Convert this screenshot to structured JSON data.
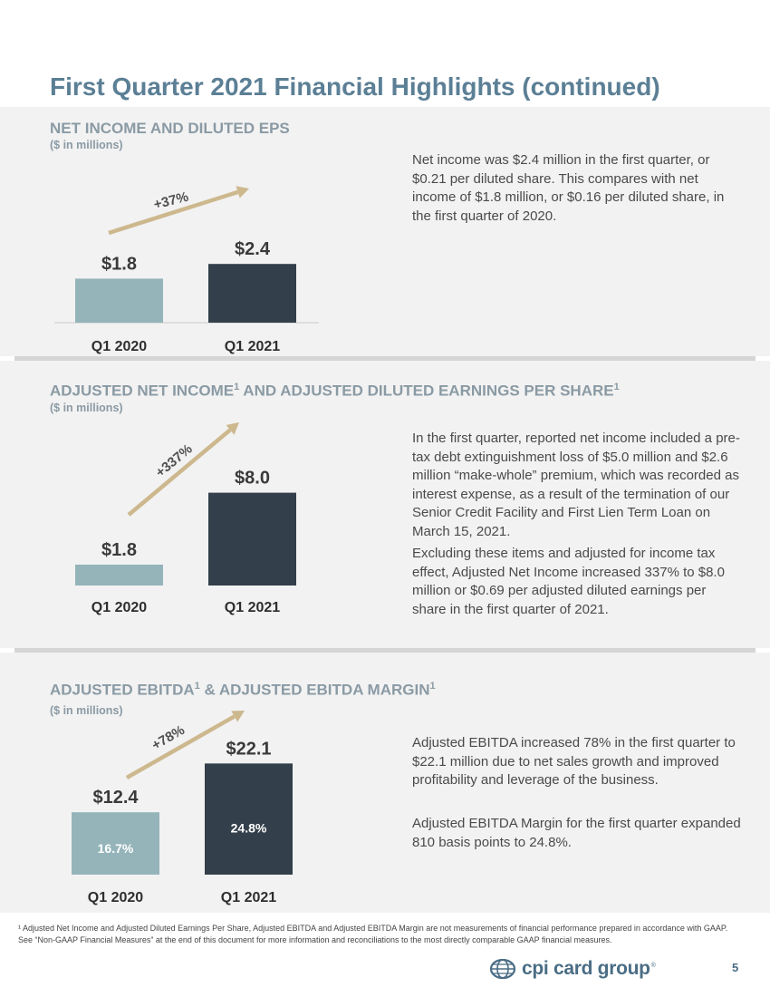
{
  "page": {
    "title": "First Quarter 2021 Financial Highlights (continued)",
    "page_number": "5",
    "footnote": "¹ Adjusted Net Income and Adjusted Diluted Earnings Per Share, Adjusted EBITDA and Adjusted EBITDA Margin are not measurements of financial performance prepared in accordance with GAAP. See “Non-GAAP Financial Measures” at the end of this document for more information and reconciliations to the most directly comparable GAAP financial measures.",
    "logo_text": "cpi card group",
    "logo_mark": "®"
  },
  "sections": [
    {
      "title": "NET INCOME AND DILUTED EPS",
      "subtitle": "($ in millions)",
      "paragraphs": [
        "Net income was $2.4 million in the first quarter, or $0.21 per diluted share. This compares with net income of $1.8 million, or $0.16 per diluted share, in the first quarter of 2020."
      ]
    },
    {
      "title_parts": [
        "ADJUSTED NET INCOME",
        "1",
        " AND ADJUSTED DILUTED EARNINGS PER SHARE",
        "1"
      ],
      "subtitle": "($ in millions)",
      "paragraphs": [
        "In the first quarter, reported net income included a pre-tax debt extinguishment loss of $5.0 million and $2.6 million “make-whole” premium, which was recorded as interest expense, as a result of the termination of our Senior Credit Facility and First Lien Term Loan on March 15, 2021.",
        "Excluding these items and adjusted for income tax effect, Adjusted Net Income increased 337% to $8.0 million or $0.69 per adjusted diluted earnings per share in the first quarter of 2021."
      ]
    },
    {
      "title_parts": [
        "ADJUSTED EBITDA",
        "1",
        " & ADJUSTED EBITDA MARGIN",
        "1"
      ],
      "subtitle": "($ in millions)",
      "paragraphs": [
        "Adjusted EBITDA increased 78% in the first quarter to $22.1 million due to net sales growth and improved profitability and leverage of the business.",
        "Adjusted EBITDA Margin for the first quarter expanded 810 basis points to 24.8%."
      ]
    }
  ],
  "chart_data": [
    {
      "type": "bar",
      "categories": [
        "Q1 2020",
        "Q1 2021"
      ],
      "values": [
        1.8,
        2.4
      ],
      "value_labels": [
        "$1.8",
        "$2.4"
      ],
      "change_label": "+37%",
      "colors": [
        "#94b4ba",
        "#333f4a"
      ]
    },
    {
      "type": "bar",
      "categories": [
        "Q1 2020",
        "Q1 2021"
      ],
      "values": [
        1.8,
        8.0
      ],
      "value_labels": [
        "$1.8",
        "$8.0"
      ],
      "change_label": "+337%",
      "colors": [
        "#94b4ba",
        "#333f4a"
      ]
    },
    {
      "type": "bar",
      "categories": [
        "Q1 2020",
        "Q1 2021"
      ],
      "values": [
        12.4,
        22.1
      ],
      "value_labels": [
        "$12.4",
        "$22.1"
      ],
      "inner_labels": [
        "16.7%",
        "24.8%"
      ],
      "change_label": "+78%",
      "colors": [
        "#94b4ba",
        "#333f4a"
      ]
    }
  ]
}
